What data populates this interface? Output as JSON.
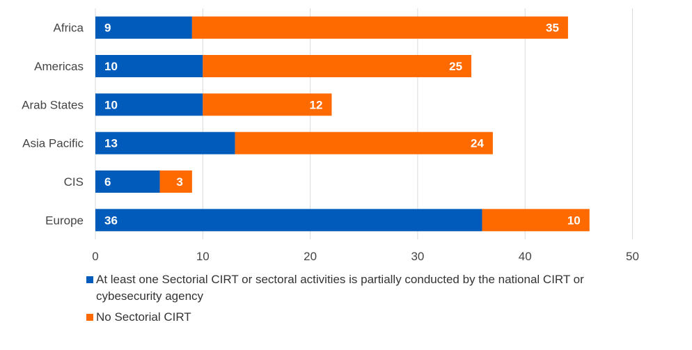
{
  "chart_data": {
    "type": "bar",
    "orientation": "horizontal",
    "stacked": true,
    "categories": [
      "Africa",
      "Americas",
      "Arab States",
      "Asia Pacific",
      "CIS",
      "Europe"
    ],
    "series": [
      {
        "name": "At least one Sectorial CIRT or sectoral activities is partially conducted by the national CIRT or cybesecurity agency",
        "values": [
          9,
          10,
          10,
          13,
          6,
          36
        ],
        "color": "#005bbb"
      },
      {
        "name": "No Sectorial CIRT",
        "values": [
          35,
          25,
          12,
          24,
          3,
          10
        ],
        "color": "#ff6a00"
      }
    ],
    "xlim": [
      0,
      50
    ],
    "xticks": [
      0,
      10,
      20,
      30,
      40,
      50
    ],
    "grid": true,
    "legend_position": "bottom",
    "data_labels": true
  }
}
